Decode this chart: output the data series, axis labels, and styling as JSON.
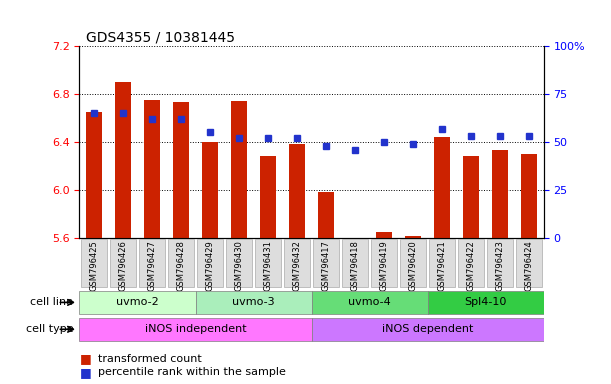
{
  "title": "GDS4355 / 10381445",
  "samples": [
    "GSM796425",
    "GSM796426",
    "GSM796427",
    "GSM796428",
    "GSM796429",
    "GSM796430",
    "GSM796431",
    "GSM796432",
    "GSM796417",
    "GSM796418",
    "GSM796419",
    "GSM796420",
    "GSM796421",
    "GSM796422",
    "GSM796423",
    "GSM796424"
  ],
  "bar_values": [
    6.65,
    6.9,
    6.75,
    6.73,
    6.4,
    6.74,
    6.28,
    6.38,
    5.98,
    5.6,
    5.65,
    5.62,
    6.44,
    6.28,
    6.33,
    6.3
  ],
  "dot_values": [
    65,
    65,
    62,
    62,
    55,
    52,
    52,
    52,
    48,
    46,
    50,
    49,
    57,
    53,
    53,
    53
  ],
  "cell_line_groups": [
    {
      "label": "uvmo-2",
      "start": 0,
      "end": 3,
      "color": "#ccffcc"
    },
    {
      "label": "uvmo-3",
      "start": 4,
      "end": 7,
      "color": "#aaeebb"
    },
    {
      "label": "uvmo-4",
      "start": 8,
      "end": 11,
      "color": "#66dd77"
    },
    {
      "label": "Spl4-10",
      "start": 12,
      "end": 15,
      "color": "#33cc44"
    }
  ],
  "cell_type_groups": [
    {
      "label": "iNOS independent",
      "start": 0,
      "end": 7,
      "color": "#ff77ff"
    },
    {
      "label": "iNOS dependent",
      "start": 8,
      "end": 15,
      "color": "#cc77ff"
    }
  ],
  "ylim_left": [
    5.6,
    7.2
  ],
  "ylim_right": [
    0,
    100
  ],
  "yticks_left": [
    5.6,
    6.0,
    6.4,
    6.8,
    7.2
  ],
  "yticks_right": [
    0,
    25,
    50,
    75,
    100
  ],
  "bar_color": "#cc2200",
  "dot_color": "#2233cc",
  "bar_bottom": 5.6,
  "background_color": "#ffffff",
  "plot_bg_color": "#ffffff",
  "sample_box_color": "#dddddd",
  "sample_box_edge": "#aaaaaa"
}
